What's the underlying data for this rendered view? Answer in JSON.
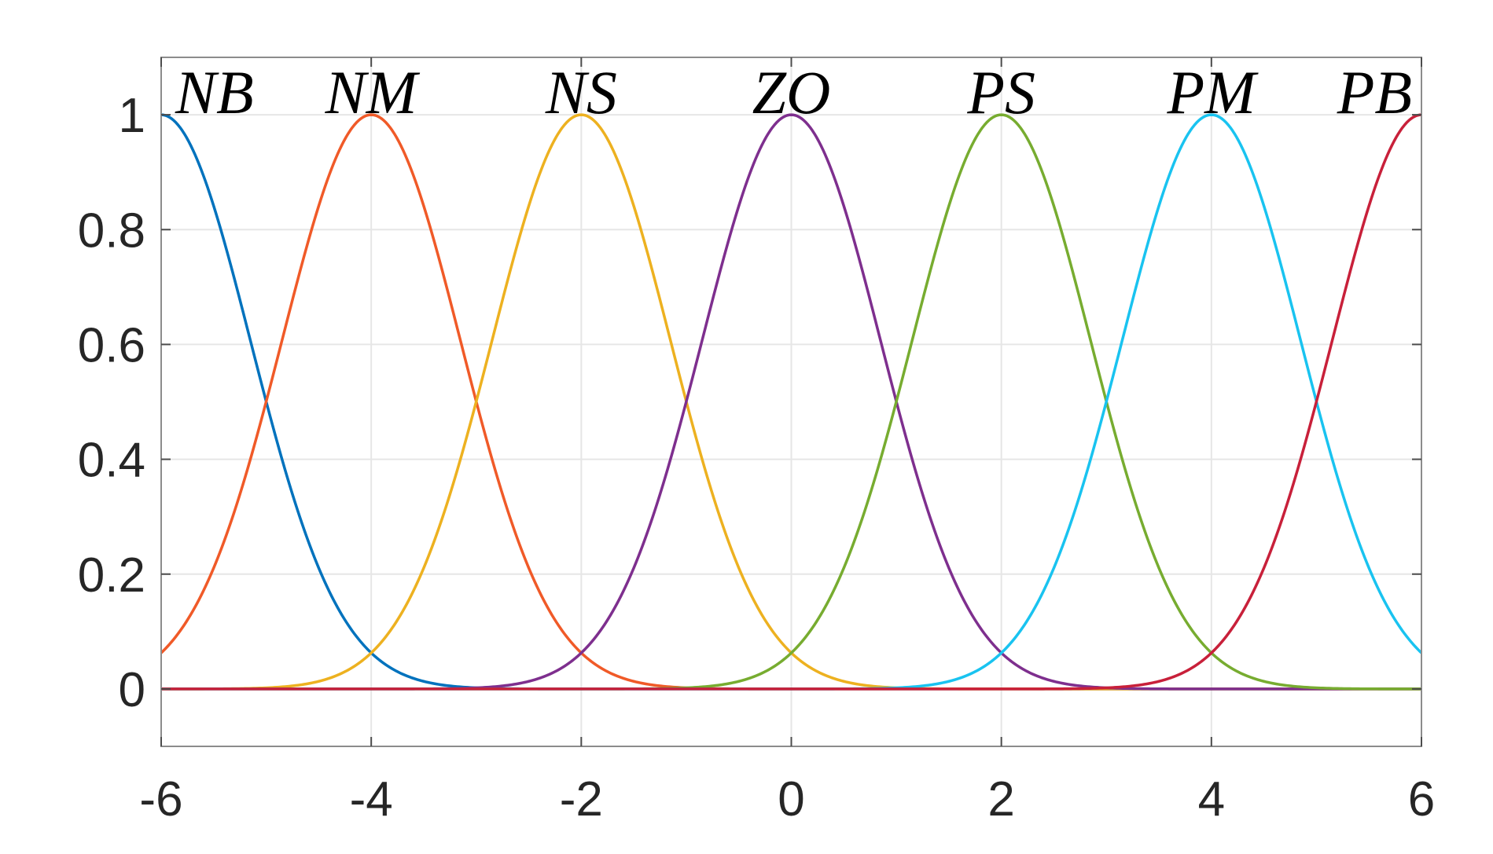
{
  "chart_data": {
    "type": "line",
    "title": "",
    "xlabel": "",
    "ylabel": "",
    "xlim": [
      -6,
      6
    ],
    "ylim": [
      -0.1,
      1.1
    ],
    "xticks": [
      -6,
      -4,
      -2,
      0,
      2,
      4,
      6
    ],
    "yticks": [
      0,
      0.2,
      0.4,
      0.6,
      0.8,
      1
    ],
    "xtick_labels": [
      "-6",
      "-4",
      "-2",
      "0",
      "2",
      "4",
      "6"
    ],
    "ytick_labels": [
      "0",
      "0.2",
      "0.4",
      "0.6",
      "0.8",
      "1"
    ],
    "grid": true,
    "curve_shape": "gaussian",
    "sigma": 0.85,
    "series": [
      {
        "name": "NB",
        "center": -6,
        "color": "#0072BD"
      },
      {
        "name": "NM",
        "center": -4,
        "color": "#F05A28"
      },
      {
        "name": "NS",
        "center": -2,
        "color": "#EDB120"
      },
      {
        "name": "ZO",
        "center": 0,
        "color": "#7E2F8E"
      },
      {
        "name": "PS",
        "center": 2,
        "color": "#77AC30"
      },
      {
        "name": "PM",
        "center": 4,
        "color": "#19C3F0"
      },
      {
        "name": "PB",
        "center": 6,
        "color": "#C8203A"
      }
    ],
    "zero_line_color": "#C8203A"
  }
}
